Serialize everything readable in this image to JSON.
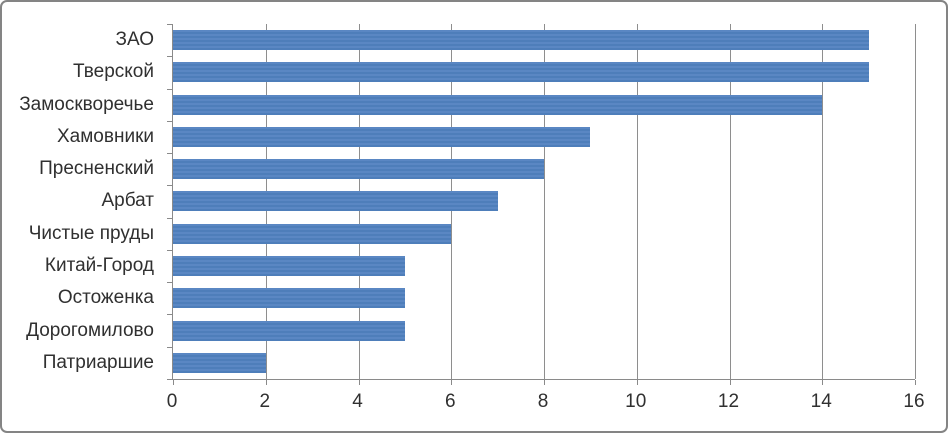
{
  "chart_data": {
    "type": "bar",
    "orientation": "horizontal",
    "title": "",
    "xlabel": "",
    "ylabel": "",
    "categories": [
      "ЗАО",
      "Тверской",
      "Замоскворечье",
      "Хамовники",
      "Пресненский",
      "Арбат",
      "Чистые пруды",
      "Китай-Город",
      "Остоженка",
      "Дорогомилово",
      "Патриаршие"
    ],
    "values": [
      15,
      15,
      14,
      9,
      8,
      7,
      6,
      5,
      5,
      5,
      2
    ],
    "xlim": [
      0,
      16
    ],
    "xticks": [
      0,
      2,
      4,
      6,
      8,
      10,
      12,
      14,
      16
    ],
    "grid": true,
    "legend": false,
    "bar_color": "#4F81BD",
    "gridline_color": "#8E8E8E",
    "axis_color": "#8A8A8A",
    "text_color": "#303030",
    "border_color": "#848484",
    "background": "#FFFFFF"
  }
}
